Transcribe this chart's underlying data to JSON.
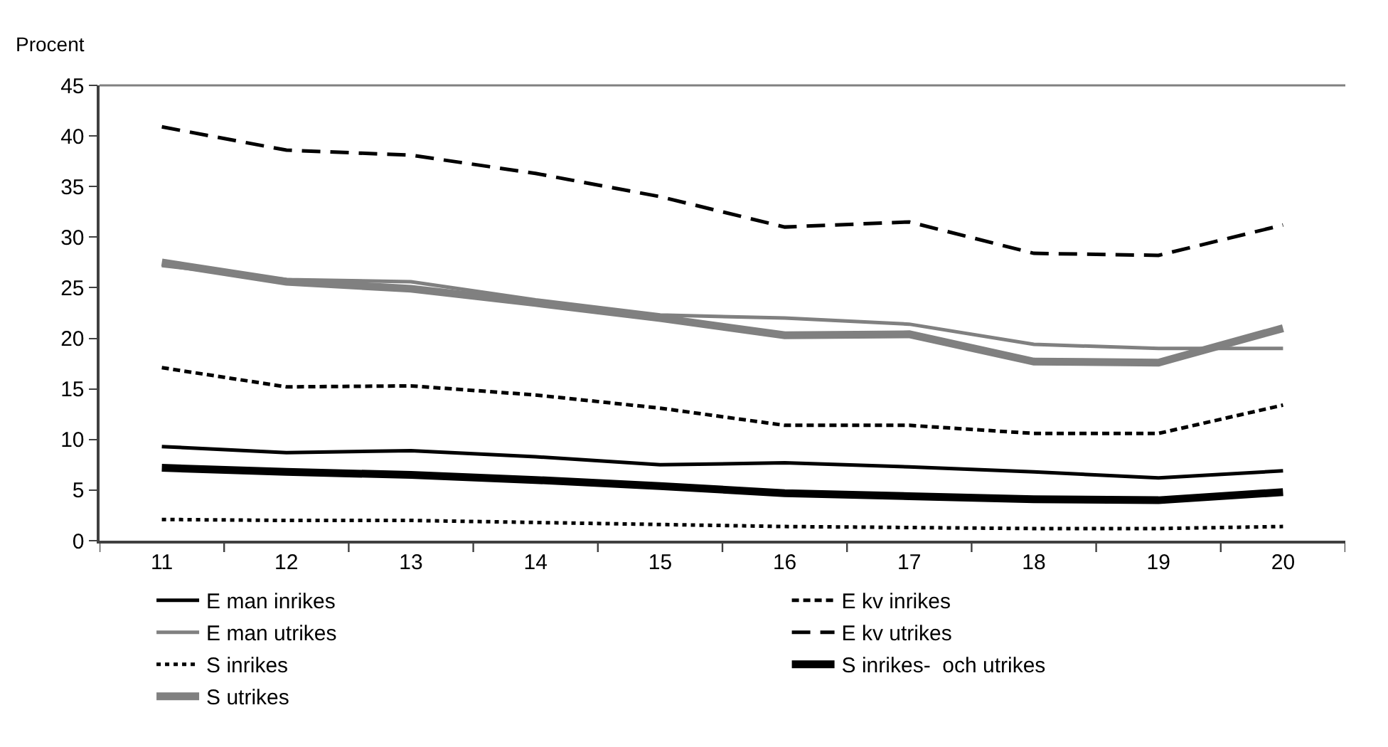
{
  "chart_data": {
    "type": "line",
    "ylabel": "Procent",
    "categories": [
      "11",
      "12",
      "13",
      "14",
      "15",
      "16",
      "17",
      "18",
      "19",
      "20"
    ],
    "ylim": [
      0,
      45
    ],
    "yticks": [
      0,
      5,
      10,
      15,
      20,
      25,
      30,
      35,
      40,
      45
    ],
    "grid": false,
    "legend": "bottom",
    "marker": "none",
    "series": [
      {
        "name": "E man inrikes",
        "color": "#000000",
        "line_style": "solid",
        "values": [
          9.3,
          8.7,
          8.9,
          8.3,
          7.5,
          7.7,
          7.3,
          6.8,
          6.2,
          6.9
        ]
      },
      {
        "name": "E kv inrikes",
        "color": "#000000",
        "line_style": "dashed",
        "values": [
          17.1,
          15.2,
          15.3,
          14.4,
          13.1,
          11.4,
          11.4,
          10.6,
          10.6,
          13.4
        ]
      },
      {
        "name": "E man utrikes",
        "color": "#808080",
        "line_style": "solid",
        "values": [
          27.2,
          25.8,
          25.6,
          23.8,
          22.3,
          22.0,
          21.4,
          19.4,
          19.0,
          19.0
        ]
      },
      {
        "name": "E kv utrikes",
        "color": "#000000",
        "line_style": "longdash",
        "values": [
          40.9,
          38.6,
          38.1,
          36.3,
          34.0,
          31.0,
          31.5,
          28.4,
          28.2,
          31.2
        ]
      },
      {
        "name": "S inrikes",
        "color": "#000000",
        "line_style": "dotted",
        "values": [
          2.1,
          2.0,
          2.0,
          1.8,
          1.6,
          1.4,
          1.3,
          1.2,
          1.2,
          1.4
        ]
      },
      {
        "name": "S inrikes-  och utrikes",
        "color": "#000000",
        "line_style": "solid",
        "values": [
          7.2,
          6.8,
          6.5,
          6.0,
          5.4,
          4.7,
          4.4,
          4.1,
          4.0,
          4.8
        ]
      },
      {
        "name": "S utrikes",
        "color": "#808080",
        "line_style": "solid",
        "values": [
          27.5,
          25.6,
          24.9,
          23.5,
          22.0,
          20.3,
          20.4,
          17.7,
          17.6,
          21.0
        ]
      }
    ]
  }
}
